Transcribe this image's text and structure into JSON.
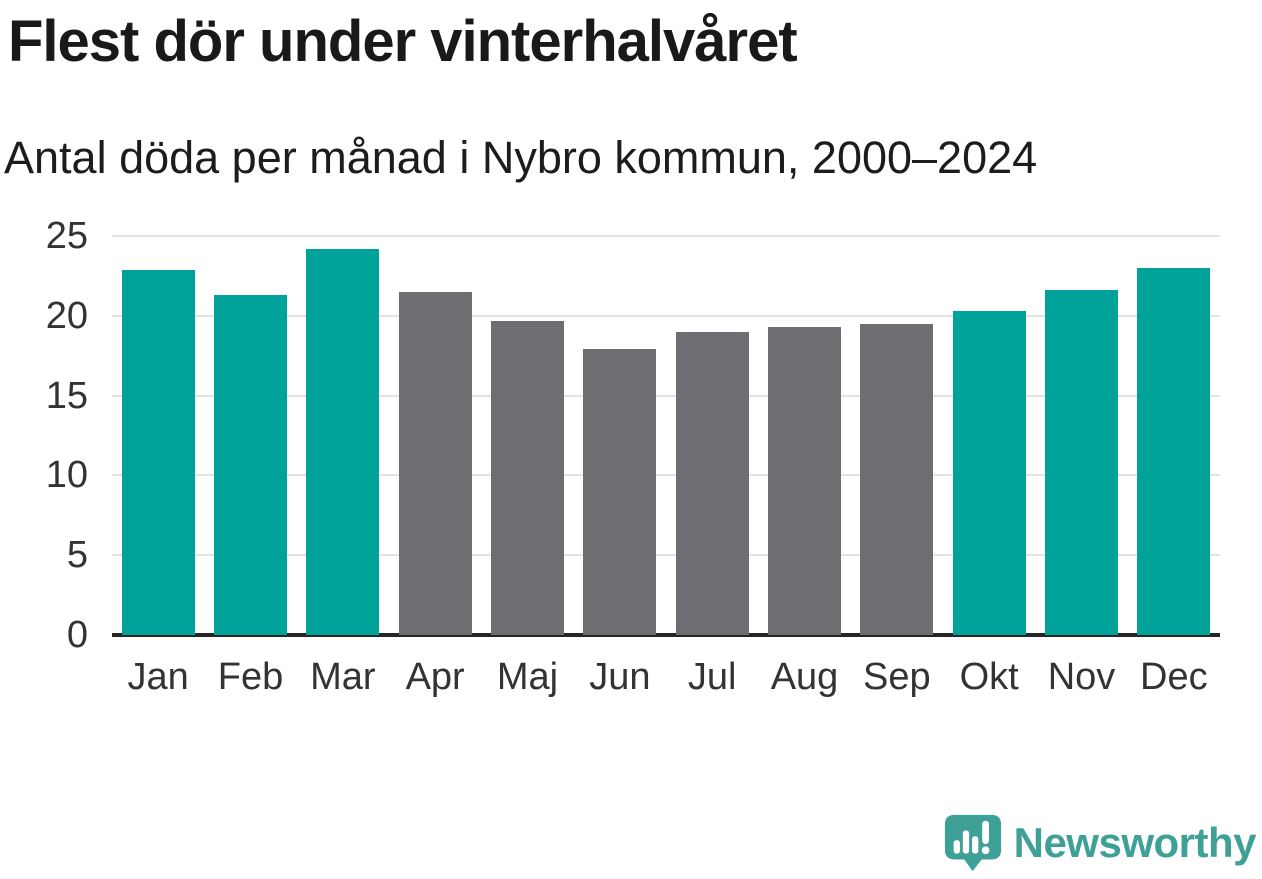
{
  "title": "Flest dör under vinterhalvåret",
  "subtitle": "Antal döda per månad i Nybro kommun, 2000–2024",
  "branding": {
    "logo_text": "Newsworthy"
  },
  "colors": {
    "accent_teal": "#00a299",
    "neutral_gray": "#6e6d72",
    "logo_teal": "#3fa097",
    "gridline": "#e2e2e2",
    "axis": "#262626",
    "title_text": "#191919",
    "tick_text": "#333333"
  },
  "chart_data": {
    "type": "bar",
    "title": "Flest dör under vinterhalvåret",
    "subtitle": "Antal döda per månad i Nybro kommun, 2000–2024",
    "categories": [
      "Jan",
      "Feb",
      "Mar",
      "Apr",
      "Maj",
      "Jun",
      "Jul",
      "Aug",
      "Sep",
      "Okt",
      "Nov",
      "Dec"
    ],
    "values": [
      22.9,
      21.3,
      24.2,
      21.5,
      19.7,
      17.9,
      19.0,
      19.3,
      19.5,
      20.3,
      21.6,
      23.0
    ],
    "bar_colors": [
      "#00a299",
      "#00a299",
      "#00a299",
      "#6e6d72",
      "#6e6d72",
      "#6e6d72",
      "#6e6d72",
      "#6e6d72",
      "#6e6d72",
      "#00a299",
      "#00a299",
      "#00a299"
    ],
    "xlabel": "",
    "ylabel": "",
    "ylim": [
      0,
      25
    ],
    "yticks": [
      0,
      5,
      10,
      15,
      20,
      25
    ],
    "grid": true,
    "legend": false
  }
}
